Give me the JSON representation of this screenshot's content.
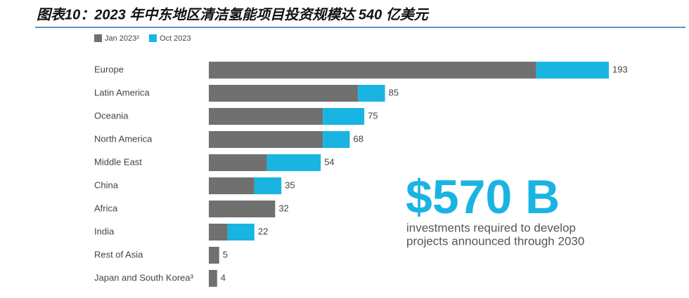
{
  "chart_data": {
    "type": "bar",
    "orientation": "horizontal",
    "stacked": true,
    "title": "图表10：2023 年中东地区清洁氢能项目投资规模达 540 亿美元",
    "categories": [
      "Europe",
      "Latin America",
      "Oceania",
      "North America",
      "Middle East",
      "China",
      "Africa",
      "India",
      "Rest of Asia",
      "Japan and South Korea³"
    ],
    "series": [
      {
        "name": "Jan 2023²",
        "color": "#707070",
        "values": [
          158,
          72,
          55,
          55,
          28,
          22,
          32,
          9,
          5,
          4
        ]
      },
      {
        "name": "Oct 2023",
        "color": "#1ab4e3",
        "values": [
          35,
          13,
          20,
          13,
          26,
          13,
          0,
          13,
          0,
          0
        ]
      }
    ],
    "totals": [
      193,
      85,
      75,
      68,
      54,
      35,
      32,
      22,
      5,
      4
    ],
    "annotation": {
      "headline": "$570 B",
      "lines": [
        "investments required to develop",
        "projects announced through 2030"
      ]
    }
  }
}
